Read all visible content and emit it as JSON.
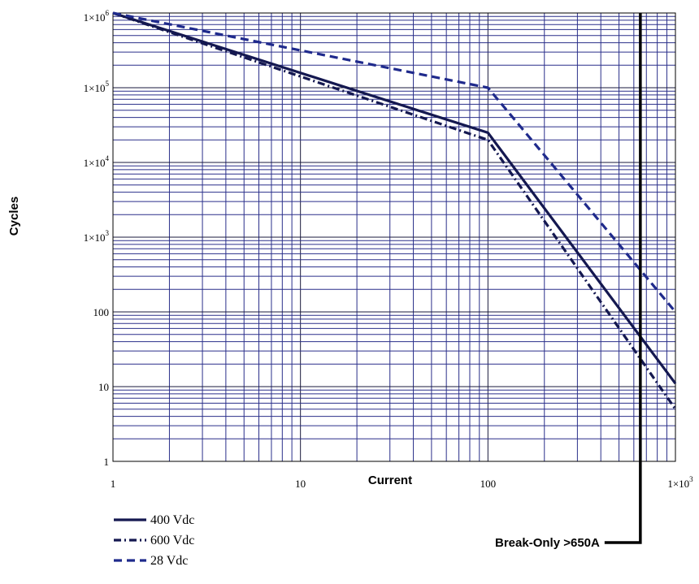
{
  "chart_data": {
    "type": "line",
    "title": "",
    "xlabel": "Current",
    "ylabel": "Cycles",
    "x_scale": "log",
    "y_scale": "log",
    "xlim": [
      1,
      1000
    ],
    "ylim": [
      1,
      1000000
    ],
    "grid": true,
    "x_ticks": [
      {
        "value": 1,
        "label": "1"
      },
      {
        "value": 10,
        "label": "10"
      },
      {
        "value": 100,
        "label": "100"
      },
      {
        "value": 1000,
        "label": "1×10",
        "sup": "3"
      }
    ],
    "y_ticks": [
      {
        "value": 1,
        "label": "1"
      },
      {
        "value": 10,
        "label": "10"
      },
      {
        "value": 100,
        "label": "100"
      },
      {
        "value": 1000,
        "label": "1×10",
        "sup": "3"
      },
      {
        "value": 10000,
        "label": "1×10",
        "sup": "4"
      },
      {
        "value": 100000,
        "label": "1×10",
        "sup": "5"
      },
      {
        "value": 1000000,
        "label": "1×10",
        "sup": "6"
      }
    ],
    "series": [
      {
        "name": "400 Vdc",
        "style": "solid",
        "color": "#141850",
        "x": [
          1,
          100,
          1000
        ],
        "y": [
          1000000,
          25000,
          11
        ]
      },
      {
        "name": "600 Vdc",
        "style": "dashdot",
        "color": "#141850",
        "x": [
          1,
          100,
          1000
        ],
        "y": [
          1000000,
          20000,
          5
        ]
      },
      {
        "name": "28 Vdc",
        "style": "dashed",
        "color": "#1f2a8c",
        "x": [
          1,
          100,
          1000
        ],
        "y": [
          1000000,
          100000,
          100
        ]
      }
    ],
    "vline": {
      "x": 650,
      "label": "Break-Only >650A"
    },
    "legend_position": "bottom-left"
  }
}
